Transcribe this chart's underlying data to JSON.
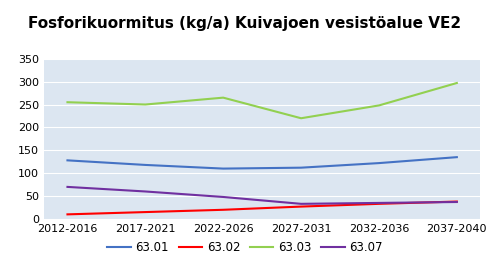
{
  "title": "Fosforikuormitus (kg/a) Kuivajoen vesistöalue VE2",
  "x_labels": [
    "2012-2016",
    "2017-2021",
    "2022-2026",
    "2027-2031",
    "2032-2036",
    "2037-2040"
  ],
  "series": {
    "63.01": {
      "values": [
        128,
        118,
        110,
        112,
        122,
        135
      ],
      "color": "#4472C4",
      "linewidth": 1.5
    },
    "63.02": {
      "values": [
        10,
        15,
        20,
        27,
        33,
        38
      ],
      "color": "#FF0000",
      "linewidth": 1.5
    },
    "63.03": {
      "values": [
        255,
        250,
        265,
        220,
        248,
        297
      ],
      "color": "#92D050",
      "linewidth": 1.5
    },
    "63.07": {
      "values": [
        70,
        60,
        48,
        33,
        35,
        37
      ],
      "color": "#7030A0",
      "linewidth": 1.5
    }
  },
  "ylim": [
    0,
    350
  ],
  "yticks": [
    0,
    50,
    100,
    150,
    200,
    250,
    300,
    350
  ],
  "background_color": "#DCE6F1",
  "grid_color": "#FFFFFF",
  "title_fontsize": 11,
  "tick_fontsize": 8,
  "legend_fontsize": 8.5
}
